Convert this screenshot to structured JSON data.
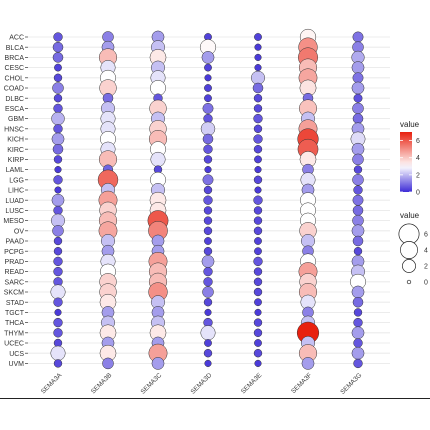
{
  "chart_data": {
    "type": "scatter",
    "title": "",
    "xlabel": "",
    "ylabel": "",
    "categories_x": [
      "SEMA3A",
      "SEMA3B",
      "SEMA3C",
      "SEMA3D",
      "SEMA3E",
      "SEMA3F",
      "SEMA3G"
    ],
    "categories_y": [
      "ACC",
      "BLCA",
      "BRCA",
      "CESC",
      "CHOL",
      "COAD",
      "DLBC",
      "ESCA",
      "GBM",
      "HNSC",
      "KICH",
      "KIRC",
      "KIRP",
      "LAML",
      "LGG",
      "LIHC",
      "LUAD",
      "LUSC",
      "MESO",
      "OV",
      "PAAD",
      "PCPG",
      "PRAD",
      "READ",
      "SARC",
      "SKCM",
      "STAD",
      "TGCT",
      "THCA",
      "THYM",
      "UCEC",
      "UCS",
      "UVM"
    ],
    "values": [
      [
        0.6,
        1.2,
        1.6,
        0.3,
        0.3,
        3.2,
        1.0
      ],
      [
        0.9,
        1.6,
        2.1,
        3.1,
        0.2,
        5.0,
        1.2
      ],
      [
        0.9,
        4.2,
        3.4,
        1.6,
        0.2,
        5.4,
        1.8
      ],
      [
        0.3,
        2.6,
        2.1,
        0.3,
        0.2,
        4.2,
        1.6
      ],
      [
        0.4,
        3.0,
        2.6,
        0.2,
        2.1,
        4.6,
        1.0
      ],
      [
        1.2,
        3.8,
        3.0,
        0.3,
        0.9,
        3.5,
        1.6
      ],
      [
        0.4,
        0.9,
        0.6,
        0.3,
        0.4,
        0.9,
        0.5
      ],
      [
        0.6,
        2.1,
        3.8,
        1.0,
        0.4,
        4.1,
        1.2
      ],
      [
        1.9,
        2.6,
        2.1,
        0.6,
        0.6,
        2.1,
        0.9
      ],
      [
        0.6,
        2.6,
        3.8,
        2.3,
        0.4,
        4.7,
        1.6
      ],
      [
        1.6,
        3.0,
        4.2,
        0.9,
        0.6,
        6.3,
        2.5
      ],
      [
        0.9,
        2.6,
        3.0,
        0.6,
        0.4,
        5.9,
        1.6
      ],
      [
        0.4,
        4.2,
        2.6,
        0.4,
        0.3,
        3.4,
        1.2
      ],
      [
        0.2,
        0.8,
        0.4,
        0.2,
        0.2,
        1.2,
        0.4
      ],
      [
        0.6,
        5.7,
        3.0,
        1.0,
        0.4,
        2.6,
        1.2
      ],
      [
        0.2,
        2.1,
        2.1,
        0.4,
        0.2,
        1.6,
        0.6
      ],
      [
        1.6,
        4.7,
        3.4,
        0.6,
        0.6,
        3.0,
        1.0
      ],
      [
        0.6,
        3.8,
        3.4,
        0.4,
        0.4,
        3.0,
        0.9
      ],
      [
        2.1,
        4.2,
        6.0,
        0.4,
        0.4,
        3.0,
        1.2
      ],
      [
        1.2,
        4.6,
        5.2,
        0.4,
        0.4,
        3.8,
        1.6
      ],
      [
        0.4,
        2.1,
        1.6,
        0.3,
        0.3,
        2.1,
        0.9
      ],
      [
        0.4,
        1.6,
        1.6,
        0.4,
        0.3,
        1.2,
        0.4
      ],
      [
        0.6,
        2.6,
        4.7,
        1.6,
        0.6,
        3.0,
        1.6
      ],
      [
        0.6,
        3.0,
        4.2,
        0.6,
        0.4,
        4.7,
        2.1
      ],
      [
        0.6,
        3.8,
        4.2,
        0.6,
        0.4,
        3.8,
        3.0
      ],
      [
        2.6,
        3.8,
        5.0,
        1.2,
        0.4,
        4.2,
        1.6
      ],
      [
        0.6,
        3.4,
        2.1,
        0.4,
        0.3,
        2.6,
        0.9
      ],
      [
        0.2,
        1.6,
        1.6,
        0.2,
        0.2,
        1.2,
        0.4
      ],
      [
        0.6,
        2.1,
        2.1,
        0.6,
        0.4,
        2.1,
        0.6
      ],
      [
        0.6,
        3.4,
        3.4,
        2.6,
        0.4,
        7.0,
        1.6
      ],
      [
        0.4,
        1.6,
        1.6,
        0.3,
        0.3,
        2.1,
        0.6
      ],
      [
        2.6,
        3.4,
        4.7,
        0.4,
        0.4,
        4.2,
        1.6
      ],
      [
        0.4,
        1.2,
        1.6,
        0.2,
        0.2,
        1.6,
        0.6
      ]
    ],
    "color_legend": {
      "title": "value",
      "ticks": [
        0,
        2,
        4,
        6
      ]
    },
    "size_legend": {
      "title": "value",
      "ticks": [
        6,
        4,
        2,
        0
      ]
    },
    "value_range": [
      0,
      7
    ],
    "color_low": "#3d2cd6",
    "color_mid": "#ffffff",
    "color_high": "#e8200f",
    "grid": true,
    "legend_position": "right"
  }
}
